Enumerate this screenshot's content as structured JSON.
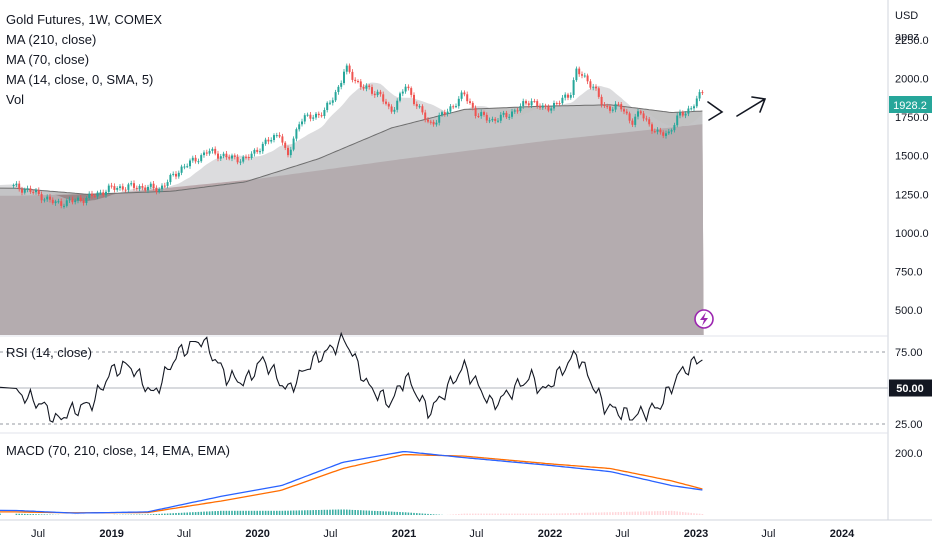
{
  "chart_data": {
    "type": "candlestick",
    "title": "Gold Futures, 1W, COMEX",
    "currency": "USD",
    "scale_mode": "apoz",
    "last_price": "1928.2",
    "indicators": [
      "MA (210, close)",
      "MA (70, close)",
      "MA (14, close, 0, SMA, 5)",
      "Vol"
    ],
    "price_axis_ticks": [
      "2250.0",
      "2000.0",
      "1750.0",
      "1500.0",
      "1250.0",
      "1000.0",
      "750.0",
      "500.0"
    ],
    "price_axis_values": [
      2250,
      2000,
      1750,
      1500,
      1250,
      1000,
      750,
      500
    ],
    "x_axis_labels": [
      "Jul",
      "2019",
      "Jul",
      "2020",
      "Jul",
      "2021",
      "Jul",
      "2022",
      "Jul",
      "2023",
      "Jul",
      "2024"
    ],
    "x_axis_bold": [
      false,
      true,
      false,
      true,
      false,
      true,
      false,
      true,
      false,
      true,
      false,
      true
    ],
    "x_axis_dates": [
      "2018-07-01",
      "2019-01-01",
      "2019-07-01",
      "2020-01-01",
      "2020-07-01",
      "2021-01-01",
      "2021-07-01",
      "2022-01-01",
      "2022-07-01",
      "2023-01-01",
      "2023-07-01",
      "2024-01-01"
    ],
    "close_path": [
      [
        "2018-05-01",
        1300
      ],
      [
        "2018-06-15",
        1270
      ],
      [
        "2018-08-15",
        1190
      ],
      [
        "2018-09-15",
        1200
      ],
      [
        "2018-11-01",
        1225
      ],
      [
        "2019-01-01",
        1290
      ],
      [
        "2019-03-01",
        1300
      ],
      [
        "2019-05-01",
        1285
      ],
      [
        "2019-06-25",
        1420
      ],
      [
        "2019-09-01",
        1530
      ],
      [
        "2019-10-15",
        1490
      ],
      [
        "2019-12-01",
        1475
      ],
      [
        "2020-01-10",
        1560
      ],
      [
        "2020-02-25",
        1650
      ],
      [
        "2020-03-15",
        1480
      ],
      [
        "2020-04-15",
        1730
      ],
      [
        "2020-06-15",
        1780
      ],
      [
        "2020-07-25",
        1960
      ],
      [
        "2020-08-07",
        2070
      ],
      [
        "2020-09-15",
        1950
      ],
      [
        "2020-11-01",
        1900
      ],
      [
        "2020-11-28",
        1780
      ],
      [
        "2021-01-05",
        1950
      ],
      [
        "2021-03-05",
        1700
      ],
      [
        "2021-04-20",
        1790
      ],
      [
        "2021-05-31",
        1900
      ],
      [
        "2021-07-01",
        1770
      ],
      [
        "2021-08-09",
        1730
      ],
      [
        "2021-09-15",
        1760
      ],
      [
        "2021-11-15",
        1860
      ],
      [
        "2021-12-15",
        1800
      ],
      [
        "2022-01-20",
        1840
      ],
      [
        "2022-02-20",
        1900
      ],
      [
        "2022-03-08",
        2050
      ],
      [
        "2022-04-20",
        1950
      ],
      [
        "2022-05-15",
        1810
      ],
      [
        "2022-06-25",
        1820
      ],
      [
        "2022-07-25",
        1720
      ],
      [
        "2022-08-15",
        1780
      ],
      [
        "2022-09-25",
        1640
      ],
      [
        "2022-10-25",
        1650
      ],
      [
        "2022-11-20",
        1760
      ],
      [
        "2022-12-20",
        1810
      ],
      [
        "2023-01-06",
        1870
      ],
      [
        "2023-01-20",
        1928
      ]
    ],
    "ma210": [
      [
        "2018-05-01",
        1240
      ],
      [
        "2019-01-01",
        1255
      ],
      [
        "2020-01-01",
        1350
      ],
      [
        "2021-01-01",
        1480
      ],
      [
        "2022-01-01",
        1600
      ],
      [
        "2023-01-20",
        1705
      ]
    ],
    "ma70": [
      [
        "2018-05-01",
        1290
      ],
      [
        "2018-11-01",
        1250
      ],
      [
        "2019-06-01",
        1270
      ],
      [
        "2019-12-01",
        1330
      ],
      [
        "2020-06-01",
        1480
      ],
      [
        "2020-12-01",
        1680
      ],
      [
        "2021-06-01",
        1800
      ],
      [
        "2021-12-01",
        1820
      ],
      [
        "2022-06-01",
        1830
      ],
      [
        "2022-11-01",
        1780
      ],
      [
        "2023-01-20",
        1790
      ]
    ],
    "rsi": {
      "label": "RSI (14, close)",
      "highlighted_value": "50.00",
      "ticks": [
        "75.00",
        "25.00"
      ],
      "upper": 75,
      "mid": 50,
      "lower": 25,
      "series": [
        [
          "2018-05-01",
          48
        ],
        [
          "2018-07-15",
          38
        ],
        [
          "2018-08-15",
          27
        ],
        [
          "2018-09-15",
          33
        ],
        [
          "2018-11-15",
          40
        ],
        [
          "2019-01-01",
          62
        ],
        [
          "2019-02-15",
          66
        ],
        [
          "2019-04-15",
          45
        ],
        [
          "2019-06-15",
          74
        ],
        [
          "2019-08-15",
          84
        ],
        [
          "2019-10-15",
          58
        ],
        [
          "2019-12-01",
          54
        ],
        [
          "2020-01-15",
          70
        ],
        [
          "2020-03-15",
          48
        ],
        [
          "2020-05-15",
          68
        ],
        [
          "2020-08-07",
          84
        ],
        [
          "2020-10-01",
          52
        ],
        [
          "2020-11-28",
          39
        ],
        [
          "2021-01-05",
          58
        ],
        [
          "2021-03-05",
          33
        ],
        [
          "2021-05-31",
          65
        ],
        [
          "2021-08-09",
          38
        ],
        [
          "2021-11-15",
          58
        ],
        [
          "2021-12-15",
          47
        ],
        [
          "2022-03-08",
          74
        ],
        [
          "2022-05-15",
          38
        ],
        [
          "2022-07-25",
          30
        ],
        [
          "2022-10-01",
          37
        ],
        [
          "2022-11-20",
          60
        ],
        [
          "2023-01-20",
          72
        ]
      ]
    },
    "macd": {
      "label": "MACD (70, 210, close, 14, EMA, EMA)",
      "tick": "200.0",
      "tick_value": 200,
      "macd_line": [
        [
          "2018-05-01",
          15
        ],
        [
          "2018-10-01",
          6
        ],
        [
          "2019-04-01",
          10
        ],
        [
          "2019-10-01",
          60
        ],
        [
          "2020-03-01",
          95
        ],
        [
          "2020-08-01",
          170
        ],
        [
          "2021-01-01",
          205
        ],
        [
          "2021-06-01",
          185
        ],
        [
          "2022-01-01",
          160
        ],
        [
          "2022-06-01",
          140
        ],
        [
          "2022-11-01",
          95
        ],
        [
          "2023-01-20",
          80
        ]
      ],
      "signal_line": [
        [
          "2018-05-01",
          10
        ],
        [
          "2018-10-01",
          7
        ],
        [
          "2019-04-01",
          8
        ],
        [
          "2019-10-01",
          45
        ],
        [
          "2020-03-01",
          80
        ],
        [
          "2020-08-01",
          150
        ],
        [
          "2021-01-01",
          195
        ],
        [
          "2021-06-01",
          190
        ],
        [
          "2022-01-01",
          165
        ],
        [
          "2022-06-01",
          150
        ],
        [
          "2022-11-01",
          110
        ],
        [
          "2023-01-20",
          83
        ]
      ]
    },
    "x_range": [
      "2018-04-01",
      "2024-07-01"
    ],
    "y_range": [
      300,
      2400
    ],
    "volume_colors": {
      "up": "#26a69a",
      "down": "#ef5350"
    }
  }
}
